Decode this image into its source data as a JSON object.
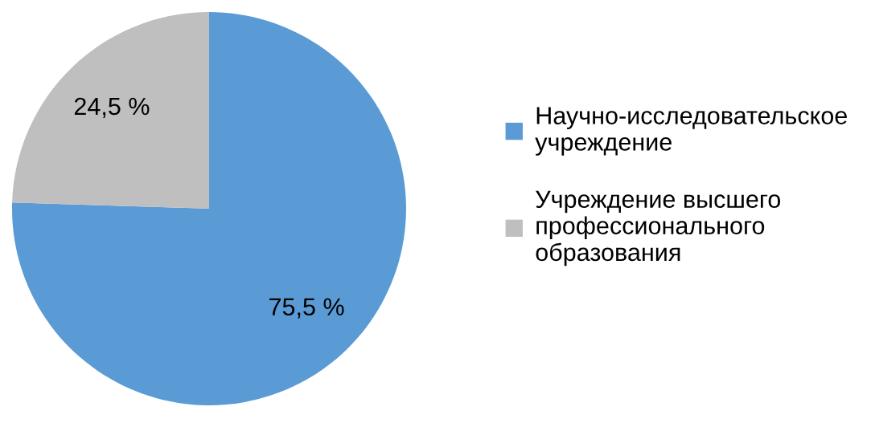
{
  "chart_data": {
    "type": "pie",
    "categories": [
      "Научно-исследовательское\nучреждение",
      "Учреждение высшего\nпрофессионального\nобразования"
    ],
    "values": [
      75.5,
      24.5
    ],
    "colors": [
      "#5b9bd5",
      "#bfbfbf"
    ],
    "value_labels": [
      "75,5 %",
      "24,5 %"
    ],
    "legend": "right"
  }
}
